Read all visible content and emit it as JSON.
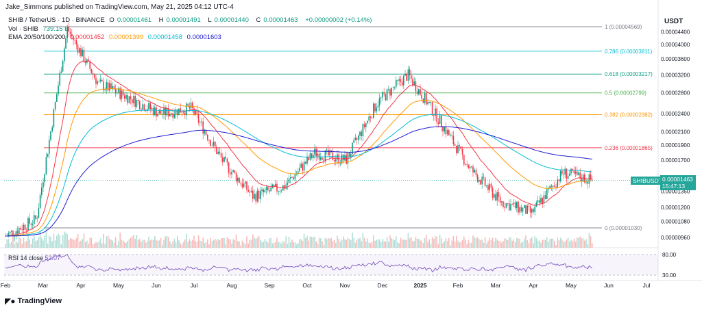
{
  "header": {
    "published": "Jake_Simmons published on TradingView.com, May 21, 2025 04:12 UTC-4"
  },
  "legend": {
    "symbol": "SHIB / TetherUS · 1D · BINANCE",
    "open_label": "O",
    "open": "0.00001461",
    "high_label": "H",
    "high": "0.00001491",
    "low_label": "L",
    "low": "0.00001440",
    "close_label": "C",
    "close": "0.00001463",
    "change": "+0.00000002 (+0.14%)",
    "vol_label": "Vol · SHIB",
    "vol_value": "739.15 B",
    "ema_label": "EMA 20/50/100/200",
    "ema20": "0.00001452",
    "ema50": "0.00001399",
    "ema100": "0.00001458",
    "ema200": "0.00001603",
    "ema_colors": {
      "ema20": "#f23645",
      "ema50": "#ff9800",
      "ema100": "#00bcd4",
      "ema200": "#1b1bd1"
    }
  },
  "rsi": {
    "label": "RSI 14 close",
    "value": "52.07",
    "levels": [
      "80.00",
      "30.00"
    ]
  },
  "price_axis": {
    "title": "USDT",
    "ticks": [
      "0.00004400",
      "0.00004000",
      "0.00003600",
      "0.00003200",
      "0.00002800",
      "0.00002400",
      "0.00002100",
      "0.00001900",
      "0.00001700",
      "0.00001500",
      "0.00001350",
      "0.00001200",
      "0.00001080",
      "0.00000960"
    ]
  },
  "last_price": {
    "symbol": "SHIBUSDT",
    "value": "0.00001463",
    "countdown": "15:47:13",
    "color": "#26a69a"
  },
  "branding": {
    "name": "TradingView"
  },
  "chart_data": {
    "type": "candlestick",
    "x_axis_labels": [
      "Feb",
      "Mar",
      "Apr",
      "May",
      "Jun",
      "Jul",
      "Aug",
      "Sep",
      "Oct",
      "Nov",
      "Dec",
      "2025",
      "Feb",
      "Mar",
      "Apr",
      "May",
      "Jun",
      "Jul"
    ],
    "y_scale": "log",
    "fib_levels": [
      {
        "ratio": "1",
        "price": 4.569e-05,
        "label": "1 (0.00004569)",
        "color": "#787b86"
      },
      {
        "ratio": "0.786",
        "price": 3.811e-05,
        "label": "0.786 (0.00003811)",
        "color": "#00bcd4"
      },
      {
        "ratio": "0.618",
        "price": 3.217e-05,
        "label": "0.618 (0.00003217)",
        "color": "#089981"
      },
      {
        "ratio": "0.5",
        "price": 2.799e-05,
        "label": "0.5 (0.00002799)",
        "color": "#4caf50"
      },
      {
        "ratio": "0.382",
        "price": 2.382e-05,
        "label": "0.382 (0.00002382)",
        "color": "#ff9800"
      },
      {
        "ratio": "0.236",
        "price": 1.865e-05,
        "label": "0.236 (0.00001865)",
        "color": "#f23645"
      },
      {
        "ratio": "0",
        "price": 1.03e-05,
        "label": "0 (0.00001030)",
        "color": "#787b86"
      }
    ],
    "price_path": [
      [
        "Feb",
        9.7e-06
      ],
      [
        "Mar-early",
        1.1e-05
      ],
      [
        "Mar-peak",
        4.5e-05
      ],
      [
        "Mar-late",
        3e-05
      ],
      [
        "Apr",
        2.7e-05
      ],
      [
        "May",
        2.4e-05
      ],
      [
        "Jun",
        2.5e-05
      ],
      [
        "Jul",
        1.7e-05
      ],
      [
        "Aug",
        1.3e-05
      ],
      [
        "Sep",
        1.4e-05
      ],
      [
        "Oct",
        1.8e-05
      ],
      [
        "Nov-early",
        1.7e-05
      ],
      [
        "Nov",
        2.6e-05
      ],
      [
        "Dec",
        3.2e-05
      ],
      [
        "2025",
        2.3e-05
      ],
      [
        "Feb",
        1.6e-05
      ],
      [
        "Mar",
        1.25e-05
      ],
      [
        "Apr",
        1.15e-05
      ],
      [
        "May",
        1.55e-05
      ],
      [
        "Jun-current",
        1.463e-05
      ]
    ],
    "ema200_path": [
      [
        "Mar",
        9.5e-06
      ],
      [
        "May",
        1.7e-05
      ],
      [
        "Jul",
        2.05e-05
      ],
      [
        "Sep",
        1.85e-05
      ],
      [
        "Nov",
        1.8e-05
      ],
      [
        "2025",
        2.05e-05
      ],
      [
        "Mar",
        1.85e-05
      ],
      [
        "May",
        1.6e-05
      ],
      [
        "Jun",
        1.6e-05
      ]
    ]
  }
}
